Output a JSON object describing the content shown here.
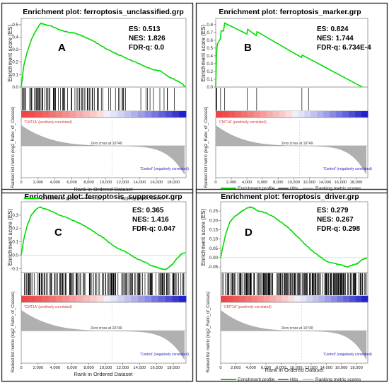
{
  "figure": {
    "border_color": "#333333"
  },
  "legend_labels": {
    "profile": "Enrichment profile",
    "hits": "Hits",
    "ranking": "Ranking metric scores"
  },
  "shared_labels": {
    "es_ylabel": "Enrichment score (ES)",
    "rank_ylabel": "Ranked list metric (log2_Ratio_of_Classes)",
    "xlabel": "Rank in Ordered Dataset",
    "pos_label": "'CMT1A' (positively correlated)",
    "neg_label": "'Control' (negatively correlated)",
    "zero_cross": "Zero cross at 10749",
    "x_ticks": [
      "0",
      "2,000",
      "4,000",
      "6,000",
      "8,000",
      "10,000",
      "12,000",
      "14,000",
      "16,000",
      "18,000"
    ]
  },
  "colors": {
    "profile": "#00dd00",
    "hits": "#000000",
    "ranking": "#999999",
    "pos": "#ee4444",
    "neg": "#2222cc"
  },
  "chart_data": [
    {
      "type": "line",
      "panel": "A",
      "title": "Enrichment plot: ferroptosis_unclassified.grp",
      "stats": [
        "ES: 0.513",
        "NES: 1.826",
        "FDR-q: 0.0"
      ],
      "xlim": [
        0,
        19500
      ],
      "ylim": [
        0,
        0.55
      ],
      "y_ticks": [
        "0.0",
        "0.1",
        "0.2",
        "0.3",
        "0.4",
        "0.5"
      ],
      "y_tick_values": [
        0,
        0.1,
        0.2,
        0.3,
        0.4,
        0.5
      ],
      "es_curve": {
        "x": [
          0,
          300,
          700,
          1200,
          1800,
          2300,
          2800,
          3500,
          4500,
          5500,
          6500,
          7500,
          8500,
          9500,
          10500,
          11500,
          12500,
          13500,
          14500,
          15500,
          16500,
          17500,
          18200,
          19000,
          19400
        ],
        "y": [
          0,
          0.17,
          0.28,
          0.38,
          0.46,
          0.51,
          0.5,
          0.49,
          0.46,
          0.44,
          0.43,
          0.4,
          0.37,
          0.33,
          0.29,
          0.26,
          0.23,
          0.2,
          0.17,
          0.14,
          0.13,
          0.08,
          0.06,
          0.03,
          0.0
        ]
      },
      "hit_density": "dense-left"
    },
    {
      "type": "line",
      "panel": "B",
      "title": "Enrichment plot: ferroptosis_marker.grp",
      "stats": [
        "ES: 0.824",
        "NES: 1.744",
        "FDR-q: 6.734E-4"
      ],
      "xlim": [
        0,
        19500
      ],
      "ylim": [
        0,
        0.88
      ],
      "y_ticks": [
        "0.0",
        "0.1",
        "0.2",
        "0.3",
        "0.4",
        "0.5",
        "0.6",
        "0.7",
        "0.8"
      ],
      "y_tick_values": [
        0,
        0.1,
        0.2,
        0.3,
        0.4,
        0.5,
        0.6,
        0.7,
        0.8
      ],
      "es_curve": {
        "x": [
          0,
          100,
          200,
          600,
          700,
          1000,
          1150,
          4000,
          4100,
          5200,
          5300,
          11000,
          11100,
          18800
        ],
        "y": [
          0,
          0.42,
          0.55,
          0.62,
          0.72,
          0.72,
          0.82,
          0.68,
          0.74,
          0.66,
          0.71,
          0.38,
          0.41,
          0.0
        ]
      },
      "hits": [
        80,
        150,
        620,
        1150,
        4050,
        5250,
        11050,
        11900
      ]
    },
    {
      "type": "line",
      "panel": "C",
      "title": "Enrichment plot: ferroptosis_suppressor.grp",
      "stats": [
        "ES: 0.365",
        "NES: 1.416",
        "FDR-q: 0.047"
      ],
      "xlim": [
        0,
        19500
      ],
      "ylim": [
        -0.13,
        0.4
      ],
      "y_ticks": [
        "-0.1",
        "0.0",
        "0.1",
        "0.2",
        "0.3"
      ],
      "y_tick_values": [
        -0.1,
        0,
        0.1,
        0.2,
        0.3
      ],
      "es_curve": {
        "x": [
          0,
          300,
          700,
          1200,
          1700,
          2200,
          2700,
          3500,
          4500,
          5500,
          6500,
          7500,
          8500,
          9500,
          10500,
          11500,
          12500,
          13500,
          14500,
          15500,
          16500,
          17000,
          17500,
          18000,
          18500,
          19000,
          19400
        ],
        "y": [
          0,
          0.12,
          0.22,
          0.3,
          0.34,
          0.36,
          0.35,
          0.33,
          0.3,
          0.28,
          0.25,
          0.22,
          0.18,
          0.14,
          0.09,
          0.05,
          0.02,
          -0.02,
          -0.05,
          -0.08,
          -0.1,
          -0.11,
          -0.09,
          -0.06,
          -0.02,
          0.01,
          0.02
        ]
      },
      "hit_density": "dense"
    },
    {
      "type": "line",
      "panel": "D",
      "title": "Enrichment plot: ferroptosis_driver.grp",
      "stats": [
        "ES: 0.279",
        "NES: 0.267",
        "FDR-q: 0.298"
      ],
      "xlim": [
        0,
        19500
      ],
      "ylim": [
        -0.08,
        0.3
      ],
      "y_ticks": [
        "-0.05",
        "0.00",
        "0.05",
        "0.10",
        "0.15",
        "0.20",
        "0.25"
      ],
      "y_tick_values": [
        -0.05,
        0,
        0.05,
        0.1,
        0.15,
        0.2,
        0.25
      ],
      "es_curve": {
        "x": [
          0,
          300,
          700,
          1200,
          1800,
          2500,
          3200,
          3800,
          4200,
          5000,
          6000,
          7000,
          8000,
          9000,
          10000,
          11000,
          12000,
          13000,
          14000,
          15000,
          16000,
          16800,
          17500,
          18200,
          18800,
          19400
        ],
        "y": [
          0,
          0.06,
          0.13,
          0.19,
          0.22,
          0.24,
          0.26,
          0.27,
          0.27,
          0.25,
          0.24,
          0.22,
          0.19,
          0.16,
          0.12,
          0.08,
          0.04,
          0.01,
          -0.02,
          -0.03,
          -0.04,
          -0.05,
          -0.04,
          -0.03,
          -0.01,
          0.0
        ]
      },
      "hit_density": "very-dense"
    }
  ]
}
